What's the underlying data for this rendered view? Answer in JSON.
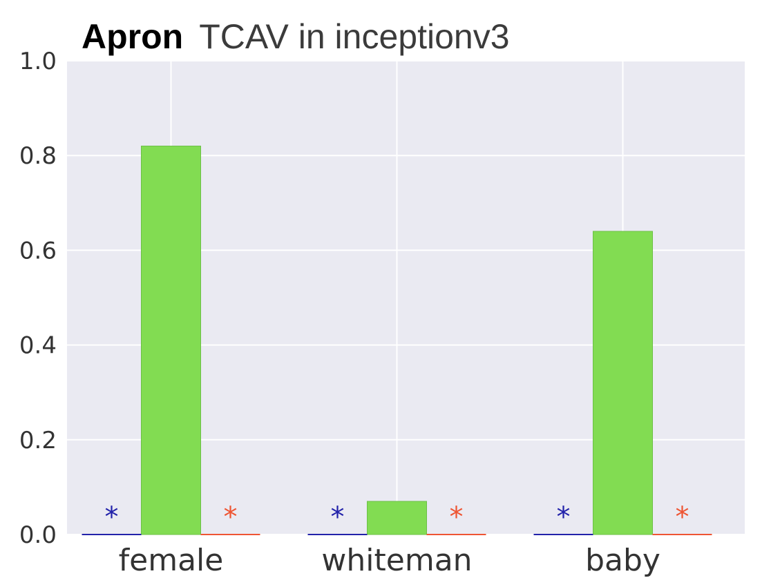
{
  "chart_data": {
    "type": "bar",
    "title_bold": "Apron",
    "title_rest": "TCAV in inceptionv3",
    "categories": [
      "female",
      "whiteman",
      "baby"
    ],
    "values": [
      0.82,
      0.07,
      0.64
    ],
    "ylim": [
      0,
      1.0
    ],
    "yticks": [
      "0.0",
      "0.2",
      "0.4",
      "0.6",
      "0.8",
      "1.0"
    ],
    "ytick_values": [
      0,
      0.2,
      0.4,
      0.6,
      0.8,
      1.0
    ],
    "grid": true,
    "bar_color": "#82dc52",
    "background_color": "#eaeaf2",
    "markers": {
      "left": {
        "symbol": "*",
        "color": "#2222aa",
        "value": 0
      },
      "right": {
        "symbol": "*",
        "color": "#ee5533",
        "value": 0
      }
    }
  }
}
